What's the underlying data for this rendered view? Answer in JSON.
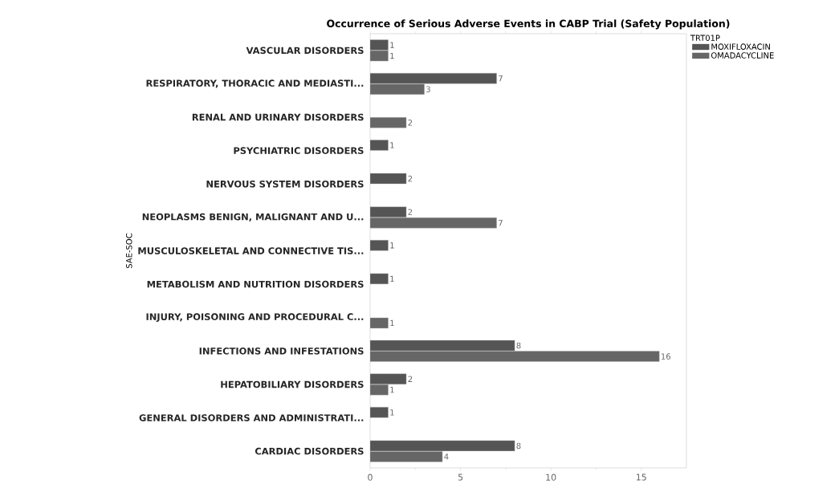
{
  "chart_data": {
    "type": "bar",
    "orientation": "horizontal",
    "title": "Occurrence of Serious Adverse Events  in CABP Trial (Safety Population)",
    "ylabel": "SAE-SOC",
    "legend_title": "TRT01P",
    "legend": "right",
    "data_labels": true,
    "grid": false,
    "categories": [
      "VASCULAR DISORDERS",
      "RESPIRATORY, THORACIC AND MEDIASTI...",
      "RENAL AND URINARY DISORDERS",
      "PSYCHIATRIC DISORDERS",
      "NERVOUS SYSTEM DISORDERS",
      "NEOPLASMS BENIGN, MALIGNANT AND U...",
      "MUSCULOSKELETAL AND CONNECTIVE TIS...",
      "METABOLISM AND NUTRITION DISORDERS",
      "INJURY, POISONING AND PROCEDURAL C...",
      "INFECTIONS AND INFESTATIONS",
      "HEPATOBILIARY DISORDERS",
      "GENERAL DISORDERS AND ADMINISTRATI...",
      "CARDIAC DISORDERS"
    ],
    "series": [
      {
        "name": "MOXIFLOXACIN",
        "color": "#555555",
        "values": [
          1,
          7,
          null,
          1,
          2,
          2,
          1,
          1,
          null,
          8,
          2,
          1,
          8
        ]
      },
      {
        "name": "OMADACYCLINE",
        "color": "#666666",
        "values": [
          1,
          3,
          2,
          null,
          null,
          7,
          null,
          null,
          1,
          16,
          1,
          null,
          4
        ]
      }
    ],
    "xlim": [
      0,
      17.5
    ],
    "xticks": [
      0,
      5,
      10,
      15
    ]
  }
}
